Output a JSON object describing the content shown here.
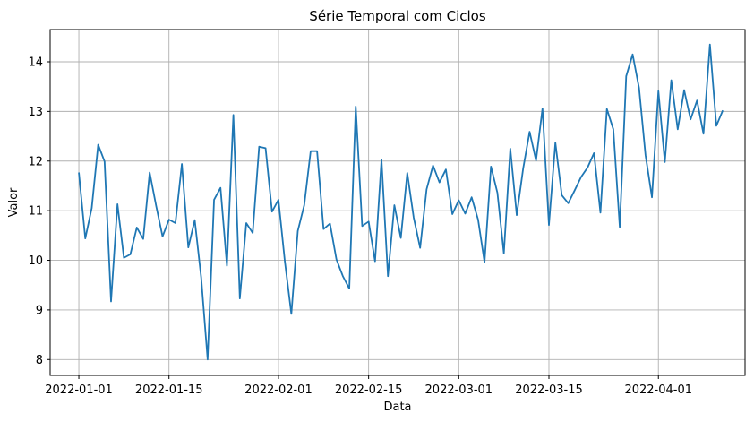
{
  "chart_data": {
    "type": "line",
    "title": "Série Temporal com Ciclos",
    "xlabel": "Data",
    "ylabel": "Valor",
    "x_start": "2022-01-01",
    "x_end": "2022-04-10",
    "x_ticks": [
      "2022-01-01",
      "2022-01-15",
      "2022-02-01",
      "2022-02-15",
      "2022-03-01",
      "2022-03-15",
      "2022-04-01"
    ],
    "y_ticks": [
      8,
      9,
      10,
      11,
      12,
      13,
      14
    ],
    "ylim": [
      7.68,
      14.65
    ],
    "grid": true,
    "legend": "none",
    "series": [
      {
        "color": "#1f77b4",
        "values": [
          11.77,
          10.44,
          11.05,
          12.33,
          11.99,
          9.17,
          11.13,
          10.05,
          10.12,
          10.66,
          10.43,
          11.77,
          11.1,
          10.48,
          10.82,
          10.75,
          11.94,
          10.26,
          10.81,
          9.65,
          8.0,
          11.22,
          11.46,
          9.89,
          12.93,
          9.23,
          10.75,
          10.55,
          12.29,
          12.26,
          10.98,
          11.22,
          9.97,
          8.92,
          10.59,
          11.11,
          12.2,
          12.2,
          10.63,
          10.74,
          10.02,
          9.68,
          9.43,
          13.1,
          10.69,
          10.78,
          9.98,
          12.03,
          9.68,
          11.11,
          10.45,
          11.76,
          10.86,
          10.25,
          11.43,
          11.91,
          11.57,
          11.83,
          10.93,
          11.21,
          10.94,
          11.27,
          10.82,
          9.96,
          11.89,
          11.36,
          10.14,
          12.25,
          10.91,
          11.85,
          12.59,
          12.01,
          13.06,
          10.71,
          12.37,
          11.31,
          11.15,
          11.41,
          11.68,
          11.87,
          12.16,
          10.96,
          13.05,
          12.64,
          10.67,
          13.71,
          14.15,
          13.47,
          12.12,
          11.27,
          13.41,
          11.98,
          13.63,
          12.64,
          13.43,
          12.84,
          13.22,
          12.55,
          14.35,
          12.71,
          13.02
        ]
      }
    ]
  }
}
